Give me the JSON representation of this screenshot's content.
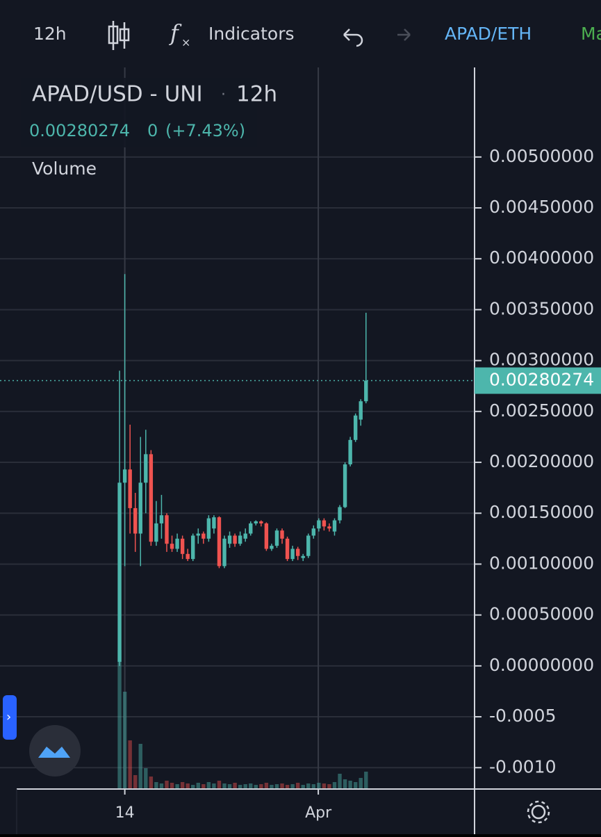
{
  "toolbar": {
    "interval": "12h",
    "indicators": "Indicators",
    "symbol": "APAD/ETH",
    "more": "Ma"
  },
  "chart_data": {
    "type": "candlestick",
    "title": "APAD/USD - UNI",
    "separator": "·",
    "interval": "12h",
    "change": "0",
    "change_pct": "(+7.43%)",
    "volume_label": "Volume",
    "up_color": "#4db6ac",
    "down_color": "#ef5350",
    "open": [
      4e-05,
      0.0018,
      0.00193,
      0.00155,
      0.0013,
      0.0018,
      0.00208,
      0.00122,
      0.0014,
      0.00148,
      0.0012,
      0.00115,
      0.00125,
      0.0011,
      0.00105,
      0.00128,
      0.0013,
      0.00125,
      0.00135,
      0.00146,
      0.00098,
      0.0012,
      0.00128,
      0.0012,
      0.00125,
      0.0013,
      0.0014,
      0.00142,
      0.0014,
      0.00115,
      0.00118,
      0.00133,
      0.00125,
      0.00105,
      0.00115,
      0.00106,
      0.00108,
      0.00128,
      0.00135,
      0.00143,
      0.00137,
      0.00132,
      0.00143,
      0.00156,
      0.00198,
      0.00222,
      0.00242,
      0.0026
    ],
    "high": [
      0.0029,
      0.00385,
      0.00237,
      0.0017,
      0.00225,
      0.00232,
      0.00212,
      0.00162,
      0.00168,
      0.0015,
      0.00128,
      0.0013,
      0.00128,
      0.00115,
      0.0013,
      0.00135,
      0.00132,
      0.00148,
      0.00148,
      0.00147,
      0.00128,
      0.00132,
      0.0013,
      0.00132,
      0.00135,
      0.00142,
      0.00143,
      0.00143,
      0.00141,
      0.0012,
      0.00135,
      0.00135,
      0.00127,
      0.00118,
      0.00117,
      0.0011,
      0.0013,
      0.00138,
      0.00145,
      0.00145,
      0.0014,
      0.00145,
      0.00158,
      0.002,
      0.00225,
      0.00248,
      0.00262,
      0.00347
    ],
    "low": [
      0.0,
      0.00098,
      0.0013,
      0.00112,
      0.00098,
      0.0015,
      0.00118,
      0.00118,
      0.00125,
      0.00112,
      0.00112,
      0.00112,
      0.00105,
      0.00103,
      0.00103,
      0.0012,
      0.0012,
      0.00122,
      0.0013,
      0.00096,
      0.00096,
      0.00116,
      0.00117,
      0.00118,
      0.00122,
      0.00128,
      0.00138,
      0.00137,
      0.00113,
      0.00113,
      0.00116,
      0.0012,
      0.00103,
      0.00103,
      0.00104,
      0.00103,
      0.00106,
      0.00125,
      0.00132,
      0.00133,
      0.00132,
      0.00128,
      0.0014,
      0.00155,
      0.00196,
      0.0022,
      0.00236,
      0.00258
    ],
    "close": [
      0.0018,
      0.00193,
      0.00155,
      0.0013,
      0.0018,
      0.00208,
      0.00122,
      0.0014,
      0.00148,
      0.0012,
      0.00115,
      0.00125,
      0.0011,
      0.00105,
      0.00128,
      0.0013,
      0.00125,
      0.00145,
      0.00146,
      0.00098,
      0.00125,
      0.00128,
      0.0012,
      0.00128,
      0.0013,
      0.0014,
      0.00142,
      0.0014,
      0.00115,
      0.00118,
      0.00133,
      0.00125,
      0.00105,
      0.00115,
      0.00108,
      0.00108,
      0.00128,
      0.00135,
      0.00143,
      0.00137,
      0.00135,
      0.00143,
      0.00156,
      0.00198,
      0.00222,
      0.00246,
      0.0026,
      0.00280274
    ],
    "volume": [
      200,
      140,
      70,
      20,
      65,
      30,
      18,
      10,
      8,
      12,
      9,
      7,
      10,
      8,
      6,
      9,
      7,
      10,
      8,
      12,
      8,
      7,
      9,
      6,
      7,
      8,
      6,
      7,
      9,
      6,
      7,
      8,
      6,
      7,
      9,
      6,
      8,
      7,
      9,
      8,
      7,
      10,
      22,
      14,
      12,
      10,
      16,
      25
    ],
    "xlim": [
      -22.8,
      67.7
    ],
    "xticks": [
      {
        "value": 1,
        "label": "14"
      },
      {
        "value": 37.9,
        "label": "Apr"
      }
    ],
    "ylim": [
      -0.00121,
      0.00588
    ],
    "yticks": [
      {
        "value": 0.005,
        "label": "0.00500000"
      },
      {
        "value": 0.0045,
        "label": "0.00450000"
      },
      {
        "value": 0.004,
        "label": "0.00400000"
      },
      {
        "value": 0.0035,
        "label": "0.00350000"
      },
      {
        "value": 0.003,
        "label": "0.00300000"
      },
      {
        "value": 0.0025,
        "label": "0.00250000"
      },
      {
        "value": 0.002,
        "label": "0.00200000"
      },
      {
        "value": 0.0015,
        "label": "0.00150000"
      },
      {
        "value": 0.001,
        "label": "0.00100000"
      },
      {
        "value": 0.0005,
        "label": "0.00050000"
      },
      {
        "value": 0,
        "label": "0.00000000"
      },
      -0.0005,
      {
        "value": -0.001,
        "label": "-0.0010"
      }
    ],
    "grid": true
  }
}
